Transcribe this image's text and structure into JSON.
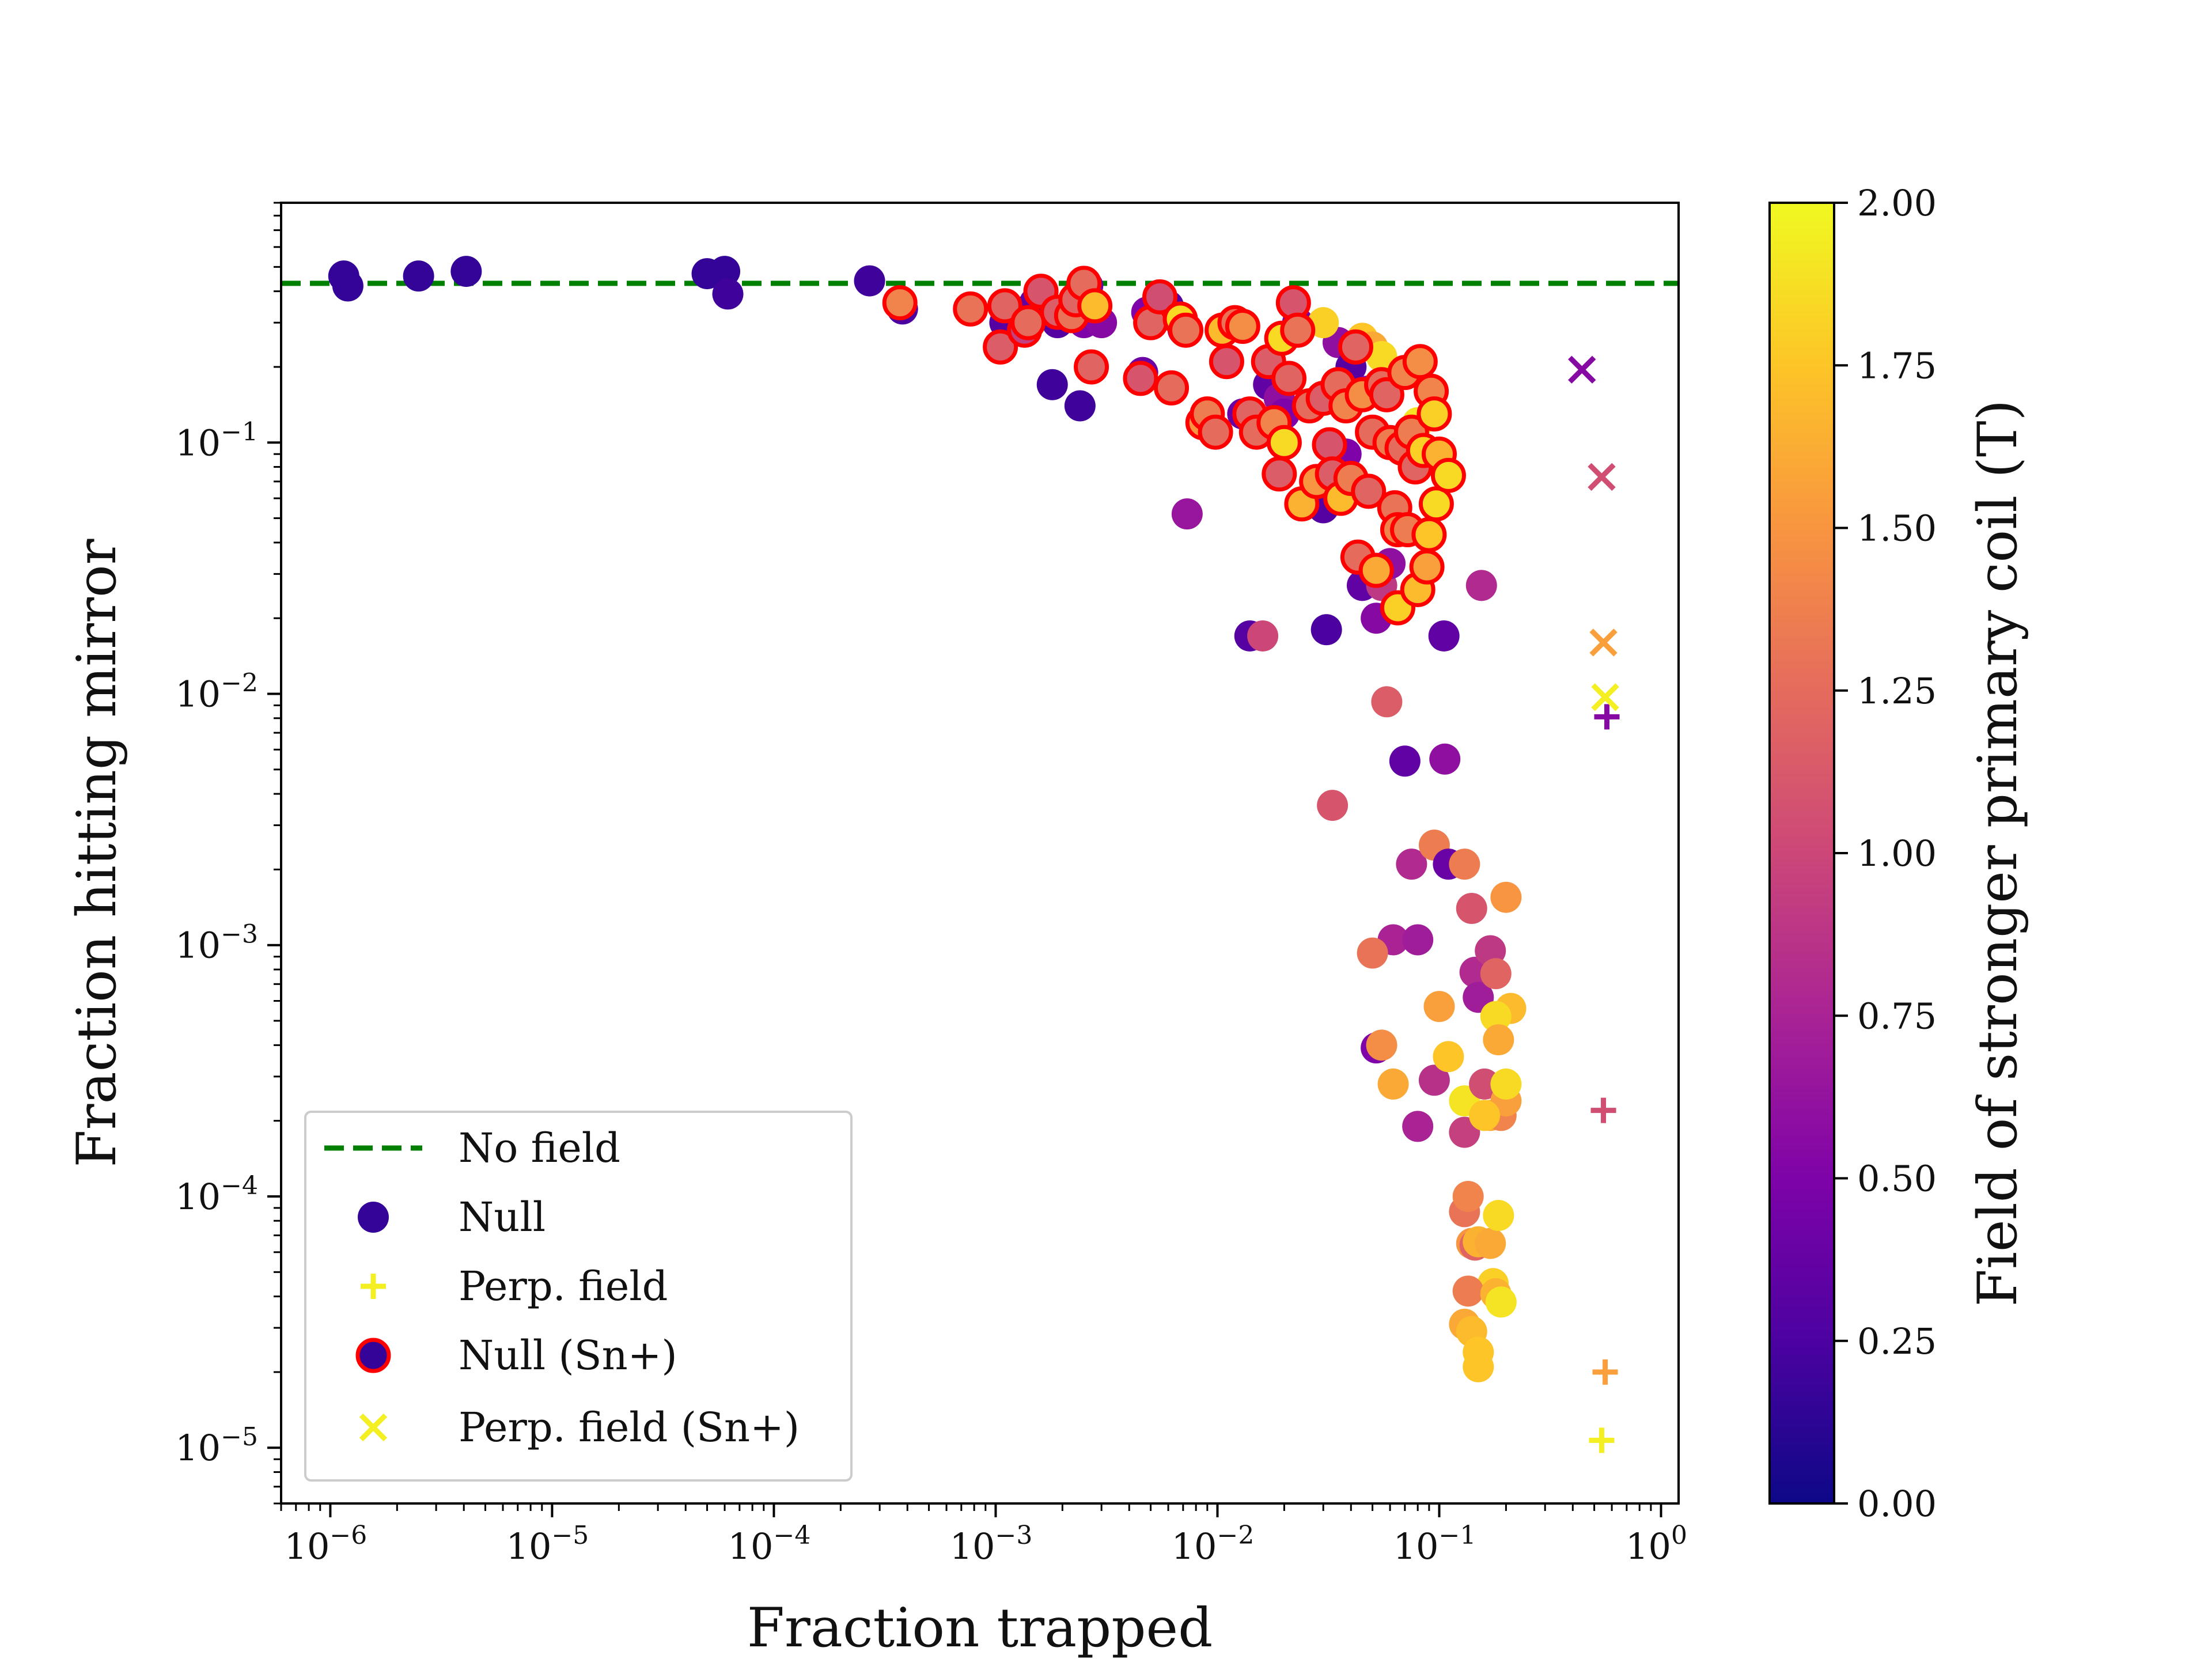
{
  "chart_data": {
    "type": "scatter",
    "title": "",
    "xlabel": "Fraction trapped",
    "ylabel": "Fraction hitting mirror",
    "xscale": "log",
    "yscale": "log",
    "xlim": [
      6e-07,
      1.2
    ],
    "ylim": [
      6e-06,
      0.9
    ],
    "x_ticks": [
      {
        "value": 1e-06,
        "label": "10",
        "exp": "−6"
      },
      {
        "value": 1e-05,
        "label": "10",
        "exp": "−5"
      },
      {
        "value": 0.0001,
        "label": "10",
        "exp": "−4"
      },
      {
        "value": 0.001,
        "label": "10",
        "exp": "−3"
      },
      {
        "value": 0.01,
        "label": "10",
        "exp": "−2"
      },
      {
        "value": 0.1,
        "label": "10",
        "exp": "−1"
      },
      {
        "value": 1,
        "label": "10",
        "exp": "0"
      }
    ],
    "y_ticks": [
      {
        "value": 1e-05,
        "label": "10",
        "exp": "−5"
      },
      {
        "value": 0.0001,
        "label": "10",
        "exp": "−4"
      },
      {
        "value": 0.001,
        "label": "10",
        "exp": "−3"
      },
      {
        "value": 0.01,
        "label": "10",
        "exp": "−2"
      },
      {
        "value": 0.1,
        "label": "10",
        "exp": "−1"
      }
    ],
    "reference_line": {
      "name": "No field",
      "y": 0.43,
      "color": "#008000",
      "style": "dashed"
    },
    "colorbar": {
      "label": "Field of stronger primary coil (T)",
      "range": [
        0,
        2
      ],
      "colormap": "plasma",
      "ticks": [
        "0.00",
        "0.25",
        "0.50",
        "0.75",
        "1.00",
        "1.25",
        "1.50",
        "1.75",
        "2.00"
      ]
    },
    "legend": {
      "placement": "lower-left",
      "entries": [
        "No field",
        "Null",
        "Perp. field",
        "Null (Sn+)",
        "Perp. field (Sn+)"
      ]
    },
    "series": [
      {
        "name": "Null",
        "marker": "circle",
        "points": [
          [
            1.15e-06,
            0.46,
            0.15
          ],
          [
            1.2e-06,
            0.42,
            0.15
          ],
          [
            2.5e-06,
            0.46,
            0.15
          ],
          [
            4.1e-06,
            0.48,
            0.15
          ],
          [
            5e-05,
            0.47,
            0.15
          ],
          [
            6e-05,
            0.48,
            0.15
          ],
          [
            6.2e-05,
            0.39,
            0.2
          ],
          [
            0.00027,
            0.44,
            0.2
          ],
          [
            0.00038,
            0.34,
            0.25
          ],
          [
            0.0011,
            0.3,
            0.3
          ],
          [
            0.0013,
            0.33,
            0.25
          ],
          [
            0.0015,
            0.36,
            0.35
          ],
          [
            0.0018,
            0.17,
            0.2
          ],
          [
            0.0019,
            0.3,
            0.3
          ],
          [
            0.0024,
            0.14,
            0.2
          ],
          [
            0.0025,
            0.3,
            0.5
          ],
          [
            0.0026,
            0.42,
            0.4
          ],
          [
            0.003,
            0.3,
            0.55
          ],
          [
            0.0046,
            0.19,
            0.4
          ],
          [
            0.0048,
            0.33,
            0.5
          ],
          [
            0.006,
            0.35,
            0.3
          ],
          [
            0.007,
            0.28,
            0.55
          ],
          [
            0.0073,
            0.052,
            0.65
          ],
          [
            0.011,
            0.21,
            0.3
          ],
          [
            0.013,
            0.13,
            0.4
          ],
          [
            0.014,
            0.017,
            0.3
          ],
          [
            0.016,
            0.017,
            1.0
          ],
          [
            0.017,
            0.17,
            0.35
          ],
          [
            0.019,
            0.15,
            0.6
          ],
          [
            0.02,
            0.13,
            0.5
          ],
          [
            0.023,
            0.3,
            0.45
          ],
          [
            0.03,
            0.055,
            0.3
          ],
          [
            0.031,
            0.018,
            0.25
          ],
          [
            0.033,
            0.0036,
            1.1
          ],
          [
            0.035,
            0.25,
            0.6
          ],
          [
            0.038,
            0.09,
            0.5
          ],
          [
            0.04,
            0.2,
            0.3
          ],
          [
            0.045,
            0.027,
            0.35
          ],
          [
            0.047,
            0.16,
            0.55
          ],
          [
            0.052,
            0.02,
            0.55
          ],
          [
            0.055,
            0.027,
            0.9
          ],
          [
            0.058,
            0.0093,
            1.15
          ],
          [
            0.06,
            0.033,
            0.6
          ],
          [
            0.062,
            0.00105,
            0.75
          ],
          [
            0.07,
            0.0054,
            0.35
          ],
          [
            0.075,
            0.0021,
            0.8
          ],
          [
            0.08,
            0.00105,
            0.7
          ],
          [
            0.095,
            0.0025,
            1.35
          ],
          [
            0.105,
            0.017,
            0.35
          ],
          [
            0.106,
            0.0055,
            0.6
          ],
          [
            0.11,
            0.0021,
            0.4
          ],
          [
            0.13,
            0.0021,
            1.35
          ],
          [
            0.14,
            0.0014,
            1.1
          ],
          [
            0.145,
            0.00078,
            0.8
          ],
          [
            0.15,
            0.00062,
            0.7
          ],
          [
            0.155,
            0.027,
            0.8
          ],
          [
            0.17,
            0.00095,
            0.9
          ],
          [
            0.18,
            0.00077,
            1.2
          ],
          [
            0.2,
            0.00155,
            1.5
          ],
          [
            0.21,
            0.00056,
            1.7
          ],
          [
            0.052,
            0.00039,
            0.5
          ],
          [
            0.055,
            0.0004,
            1.45
          ],
          [
            0.062,
            0.00028,
            1.6
          ],
          [
            0.05,
            0.00093,
            1.3
          ],
          [
            0.08,
            0.00019,
            0.75
          ],
          [
            0.095,
            0.00029,
            0.85
          ],
          [
            0.1,
            0.00057,
            1.55
          ],
          [
            0.11,
            0.00036,
            1.75
          ],
          [
            0.13,
            0.00018,
            0.95
          ],
          [
            0.13,
            0.00024,
            1.9
          ],
          [
            0.16,
            0.00028,
            1.05
          ],
          [
            0.17,
            0.00021,
            1.6
          ],
          [
            0.18,
            0.00052,
            1.85
          ],
          [
            0.185,
            0.00042,
            1.6
          ],
          [
            0.19,
            0.00021,
            1.4
          ],
          [
            0.2,
            0.00024,
            1.55
          ],
          [
            0.2,
            0.00028,
            1.85
          ],
          [
            0.16,
            0.00021,
            1.75
          ],
          [
            0.13,
            8.7e-05,
            1.3
          ],
          [
            0.135,
            0.0001,
            1.4
          ],
          [
            0.14,
            6.5e-05,
            1.5
          ],
          [
            0.145,
            6.4e-05,
            1.2
          ],
          [
            0.15,
            6.6e-05,
            1.65
          ],
          [
            0.17,
            6.5e-05,
            1.6
          ],
          [
            0.175,
            4.5e-05,
            1.8
          ],
          [
            0.185,
            8.4e-05,
            1.85
          ],
          [
            0.135,
            4.2e-05,
            1.35
          ],
          [
            0.18,
            4.1e-05,
            1.65
          ],
          [
            0.19,
            3.8e-05,
            1.9
          ],
          [
            0.13,
            3.1e-05,
            1.6
          ],
          [
            0.14,
            2.9e-05,
            1.7
          ],
          [
            0.15,
            2.4e-05,
            1.75
          ],
          [
            0.15,
            2.1e-05,
            1.75
          ],
          [
            0.03,
            0.3,
            1.8
          ],
          [
            0.045,
            0.26,
            1.75
          ],
          [
            0.05,
            0.24,
            1.6
          ],
          [
            0.055,
            0.22,
            1.85
          ],
          [
            0.08,
            0.12,
            1.9
          ]
        ]
      },
      {
        "name": "Perp. field",
        "marker": "plus",
        "points": [
          [
            0.57,
            0.0081,
            0.55
          ],
          [
            0.55,
            0.00022,
            1.05
          ],
          [
            0.56,
            2e-05,
            1.55
          ],
          [
            0.54,
            1.07e-05,
            1.95
          ]
        ]
      },
      {
        "name": "Null (Sn+)",
        "marker": "circle-red-edge",
        "points": [
          [
            0.00037,
            0.36,
            1.4
          ],
          [
            0.00077,
            0.34,
            1.3
          ],
          [
            0.00105,
            0.24,
            1.15
          ],
          [
            0.0011,
            0.35,
            1.2
          ],
          [
            0.00135,
            0.28,
            0.95
          ],
          [
            0.0014,
            0.3,
            1.25
          ],
          [
            0.0016,
            0.4,
            1.1
          ],
          [
            0.0019,
            0.33,
            1.15
          ],
          [
            0.0022,
            0.32,
            1.3
          ],
          [
            0.0023,
            0.37,
            1.2
          ],
          [
            0.0025,
            0.43,
            1.25
          ],
          [
            0.0027,
            0.2,
            1.2
          ],
          [
            0.0028,
            0.35,
            1.7
          ],
          [
            0.0045,
            0.18,
            1.1
          ],
          [
            0.005,
            0.3,
            1.2
          ],
          [
            0.0055,
            0.38,
            1.05
          ],
          [
            0.0062,
            0.165,
            1.25
          ],
          [
            0.0068,
            0.31,
            1.85
          ],
          [
            0.0072,
            0.28,
            1.3
          ],
          [
            0.0086,
            0.12,
            1.5
          ],
          [
            0.009,
            0.13,
            1.35
          ],
          [
            0.0098,
            0.11,
            1.25
          ],
          [
            0.0105,
            0.28,
            1.7
          ],
          [
            0.011,
            0.21,
            1.1
          ],
          [
            0.012,
            0.3,
            1.3
          ],
          [
            0.013,
            0.29,
            1.45
          ],
          [
            0.014,
            0.13,
            1.2
          ],
          [
            0.015,
            0.11,
            1.25
          ],
          [
            0.017,
            0.21,
            1.15
          ],
          [
            0.018,
            0.12,
            1.4
          ],
          [
            0.019,
            0.075,
            1.15
          ],
          [
            0.0195,
            0.26,
            1.85
          ],
          [
            0.02,
            0.1,
            1.85
          ],
          [
            0.021,
            0.18,
            1.2
          ],
          [
            0.022,
            0.36,
            1.1
          ],
          [
            0.023,
            0.28,
            1.3
          ],
          [
            0.024,
            0.057,
            1.65
          ],
          [
            0.026,
            0.14,
            1.25
          ],
          [
            0.028,
            0.07,
            1.5
          ],
          [
            0.03,
            0.15,
            1.15
          ],
          [
            0.032,
            0.098,
            1.1
          ],
          [
            0.033,
            0.075,
            1.15
          ],
          [
            0.035,
            0.17,
            1.25
          ],
          [
            0.036,
            0.06,
            1.7
          ],
          [
            0.038,
            0.14,
            1.4
          ],
          [
            0.04,
            0.072,
            1.35
          ],
          [
            0.042,
            0.24,
            1.2
          ],
          [
            0.043,
            0.035,
            1.25
          ],
          [
            0.045,
            0.155,
            1.45
          ],
          [
            0.048,
            0.064,
            1.2
          ],
          [
            0.05,
            0.11,
            1.25
          ],
          [
            0.052,
            0.031,
            1.6
          ],
          [
            0.055,
            0.17,
            1.25
          ],
          [
            0.058,
            0.155,
            1.2
          ],
          [
            0.06,
            0.1,
            1.35
          ],
          [
            0.063,
            0.055,
            1.3
          ],
          [
            0.065,
            0.045,
            1.4
          ],
          [
            0.065,
            0.022,
            1.8
          ],
          [
            0.068,
            0.095,
            1.25
          ],
          [
            0.07,
            0.19,
            1.4
          ],
          [
            0.072,
            0.045,
            1.35
          ],
          [
            0.075,
            0.11,
            1.35
          ],
          [
            0.078,
            0.08,
            1.2
          ],
          [
            0.08,
            0.026,
            1.7
          ],
          [
            0.082,
            0.21,
            1.45
          ],
          [
            0.085,
            0.093,
            1.8
          ],
          [
            0.088,
            0.032,
            1.55
          ],
          [
            0.09,
            0.043,
            1.75
          ],
          [
            0.092,
            0.16,
            1.4
          ],
          [
            0.095,
            0.13,
            1.8
          ],
          [
            0.097,
            0.057,
            1.85
          ],
          [
            0.1,
            0.09,
            1.65
          ],
          [
            0.11,
            0.074,
            1.85
          ]
        ]
      },
      {
        "name": "Perp. field (Sn+)",
        "marker": "x",
        "points": [
          [
            0.44,
            0.195,
            0.55
          ],
          [
            0.54,
            0.073,
            1.05
          ],
          [
            0.55,
            0.016,
            1.55
          ],
          [
            0.56,
            0.0097,
            1.95
          ]
        ]
      }
    ]
  }
}
